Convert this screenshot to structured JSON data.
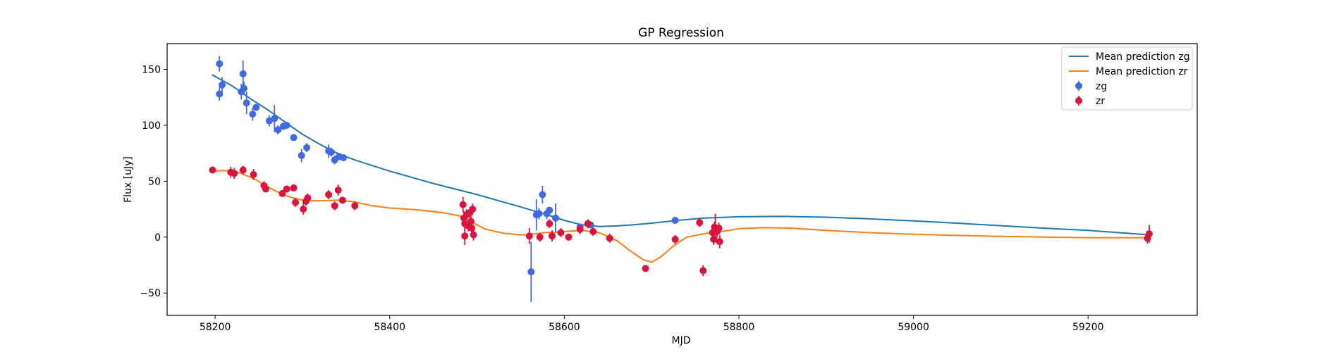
{
  "chart_data": {
    "type": "scatter",
    "title": "GP Regression",
    "xlabel": "MJD",
    "ylabel": "Flux [uJy]",
    "xlim": [
      58145,
      59325
    ],
    "ylim": [
      -70,
      173
    ],
    "xticks": [
      58200,
      58400,
      58600,
      58800,
      59000,
      59200
    ],
    "yticks": [
      -50,
      0,
      50,
      100,
      150
    ],
    "grid": false,
    "legend_position": "top-right",
    "colors": {
      "zg": "#4169e1",
      "zr": "#dc143c",
      "mean_zg": "#1f77b4",
      "mean_zr": "#ff7f0e"
    },
    "lines": [
      {
        "name": "Mean prediction zg",
        "color": "#1f77b4",
        "x": [
          58197,
          58220,
          58240,
          58260,
          58280,
          58300,
          58320,
          58340,
          58360,
          58400,
          58450,
          58500,
          58550,
          58580,
          58600,
          58620,
          58640,
          58660,
          58680,
          58700,
          58730,
          58760,
          58800,
          58850,
          58900,
          58950,
          59000,
          59050,
          59100,
          59150,
          59200,
          59270
        ],
        "y": [
          145,
          135,
          124,
          114,
          103,
          92,
          83,
          75,
          69,
          59,
          48,
          38,
          27,
          20,
          15,
          11,
          9.5,
          10,
          11,
          12.5,
          15,
          17,
          18.2,
          18.5,
          17.8,
          16.3,
          14.5,
          12.5,
          10.2,
          8,
          6,
          2
        ]
      },
      {
        "name": "Mean prediction zr",
        "color": "#ff7f0e",
        "x": [
          58197,
          58210,
          58220,
          58230,
          58245,
          58260,
          58280,
          58300,
          58320,
          58340,
          58360,
          58380,
          58400,
          58430,
          58460,
          58480,
          58495,
          58510,
          58530,
          58550,
          58560,
          58570,
          58580,
          58590,
          58600,
          58620,
          58640,
          58660,
          58675,
          58690,
          58700,
          58710,
          58725,
          58740,
          58760,
          58780,
          58800,
          58830,
          58860,
          58900,
          58950,
          59000,
          59050,
          59100,
          59150,
          59200,
          59270
        ],
        "y": [
          59,
          59.5,
          59,
          57,
          52,
          45,
          37,
          33,
          32.5,
          33,
          31.5,
          28,
          26,
          24.5,
          22,
          19,
          13,
          7,
          3.5,
          2,
          2.2,
          3.2,
          4.2,
          4.5,
          5,
          6,
          4,
          -3,
          -12,
          -20,
          -22.5,
          -18,
          -8,
          0,
          3,
          5,
          7.5,
          8.5,
          8,
          6,
          4,
          2.5,
          1.5,
          0.7,
          0,
          -0.5,
          -0.5
        ]
      }
    ],
    "series": [
      {
        "name": "zg",
        "color": "#4169e1",
        "points": [
          {
            "x": 58205,
            "y": 155,
            "err": 7
          },
          {
            "x": 58205,
            "y": 128,
            "err": 6
          },
          {
            "x": 58208,
            "y": 136,
            "err": 7
          },
          {
            "x": 58230,
            "y": 130,
            "err": 7
          },
          {
            "x": 58232,
            "y": 146,
            "err": 12
          },
          {
            "x": 58233,
            "y": 133,
            "err": 6
          },
          {
            "x": 58236,
            "y": 120,
            "err": 10
          },
          {
            "x": 58243,
            "y": 110,
            "err": 6
          },
          {
            "x": 58247,
            "y": 116,
            "err": 3
          },
          {
            "x": 58262,
            "y": 104,
            "err": 5
          },
          {
            "x": 58268,
            "y": 106,
            "err": 12
          },
          {
            "x": 58272,
            "y": 96,
            "err": 4
          },
          {
            "x": 58278,
            "y": 99,
            "err": 3
          },
          {
            "x": 58282,
            "y": 100,
            "err": 3
          },
          {
            "x": 58290,
            "y": 89,
            "err": 3
          },
          {
            "x": 58299,
            "y": 73,
            "err": 6
          },
          {
            "x": 58305,
            "y": 80,
            "err": 4
          },
          {
            "x": 58330,
            "y": 77,
            "err": 6
          },
          {
            "x": 58333,
            "y": 76,
            "err": 4
          },
          {
            "x": 58337,
            "y": 69,
            "err": 4
          },
          {
            "x": 58342,
            "y": 72,
            "err": 3
          },
          {
            "x": 58347,
            "y": 71,
            "err": 3
          },
          {
            "x": 58562,
            "y": -31,
            "err": 27
          },
          {
            "x": 58568,
            "y": 20,
            "err": 14
          },
          {
            "x": 58571,
            "y": 21,
            "err": 5
          },
          {
            "x": 58575,
            "y": 38,
            "err": 8
          },
          {
            "x": 58580,
            "y": 21,
            "err": 5
          },
          {
            "x": 58583,
            "y": 24,
            "err": 3
          },
          {
            "x": 58590,
            "y": 17,
            "err": 13
          },
          {
            "x": 58618,
            "y": 9,
            "err": 3
          },
          {
            "x": 58630,
            "y": 11,
            "err": 3
          },
          {
            "x": 58727,
            "y": 15,
            "err": 3
          }
        ]
      },
      {
        "name": "zr",
        "color": "#dc143c",
        "points": [
          {
            "x": 58197,
            "y": 60,
            "err": 3
          },
          {
            "x": 58218,
            "y": 58,
            "err": 5
          },
          {
            "x": 58222,
            "y": 57,
            "err": 5
          },
          {
            "x": 58232,
            "y": 60,
            "err": 4
          },
          {
            "x": 58244,
            "y": 56,
            "err": 5
          },
          {
            "x": 58256,
            "y": 46,
            "err": 4
          },
          {
            "x": 58258,
            "y": 43,
            "err": 3
          },
          {
            "x": 58277,
            "y": 39,
            "err": 3
          },
          {
            "x": 58282,
            "y": 43,
            "err": 3
          },
          {
            "x": 58290,
            "y": 44,
            "err": 3
          },
          {
            "x": 58292,
            "y": 31,
            "err": 4
          },
          {
            "x": 58301,
            "y": 25,
            "err": 5
          },
          {
            "x": 58304,
            "y": 32,
            "err": 4
          },
          {
            "x": 58306,
            "y": 35,
            "err": 4
          },
          {
            "x": 58330,
            "y": 38,
            "err": 4
          },
          {
            "x": 58337,
            "y": 28,
            "err": 4
          },
          {
            "x": 58341,
            "y": 42,
            "err": 5
          },
          {
            "x": 58346,
            "y": 33,
            "err": 3
          },
          {
            "x": 58360,
            "y": 28,
            "err": 4
          },
          {
            "x": 58484,
            "y": 29,
            "err": 7
          },
          {
            "x": 58485,
            "y": 17,
            "err": 6
          },
          {
            "x": 58486,
            "y": 12,
            "err": 6
          },
          {
            "x": 58486,
            "y": 1,
            "err": 8
          },
          {
            "x": 58488,
            "y": 20,
            "err": 5
          },
          {
            "x": 58490,
            "y": 10,
            "err": 5
          },
          {
            "x": 58492,
            "y": 22,
            "err": 5
          },
          {
            "x": 58493,
            "y": 14,
            "err": 5
          },
          {
            "x": 58494,
            "y": 8,
            "err": 6
          },
          {
            "x": 58495,
            "y": 25,
            "err": 5
          },
          {
            "x": 58496,
            "y": 2,
            "err": 5
          },
          {
            "x": 58560,
            "y": 1,
            "err": 7
          },
          {
            "x": 58572,
            "y": 0,
            "err": 4
          },
          {
            "x": 58583,
            "y": 12,
            "err": 4
          },
          {
            "x": 58586,
            "y": 1,
            "err": 5
          },
          {
            "x": 58596,
            "y": 4,
            "err": 4
          },
          {
            "x": 58605,
            "y": 0,
            "err": 3
          },
          {
            "x": 58618,
            "y": 7,
            "err": 4
          },
          {
            "x": 58627,
            "y": 12,
            "err": 4
          },
          {
            "x": 58633,
            "y": 5,
            "err": 4
          },
          {
            "x": 58652,
            "y": -1,
            "err": 4
          },
          {
            "x": 58693,
            "y": -28,
            "err": 3
          },
          {
            "x": 58727,
            "y": -2,
            "err": 4
          },
          {
            "x": 58755,
            "y": 13,
            "err": 4
          },
          {
            "x": 58770,
            "y": 4,
            "err": 6
          },
          {
            "x": 58771,
            "y": -2,
            "err": 5
          },
          {
            "x": 58772,
            "y": 9,
            "err": 5
          },
          {
            "x": 58773,
            "y": 8,
            "err": 13
          },
          {
            "x": 58775,
            "y": 5,
            "err": 6
          },
          {
            "x": 58777,
            "y": 8,
            "err": 5
          },
          {
            "x": 58778,
            "y": -4,
            "err": 6
          },
          {
            "x": 58759,
            "y": -30,
            "err": 5
          },
          {
            "x": 59268,
            "y": -1,
            "err": 5
          },
          {
            "x": 59270,
            "y": 3,
            "err": 8
          }
        ]
      }
    ],
    "legend": [
      "Mean prediction zg",
      "Mean prediction zr",
      "zg",
      "zr"
    ]
  }
}
